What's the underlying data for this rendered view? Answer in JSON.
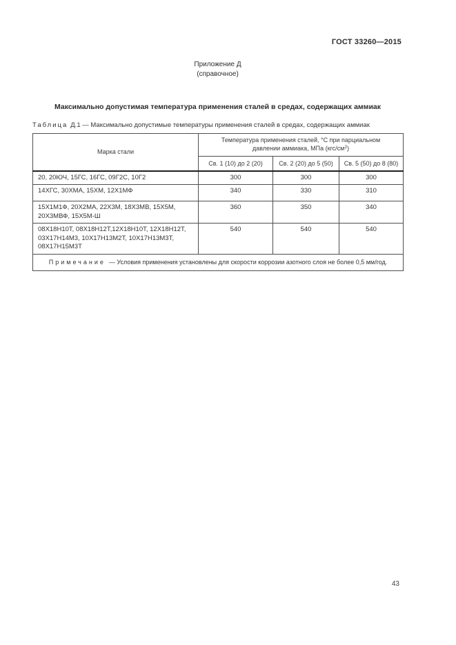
{
  "header": {
    "doc_number": "ГОСТ 33260—2015",
    "appendix_label": "Приложение Д",
    "appendix_type": "(справочное)",
    "title": "Максимально допустимая температура применения сталей в средах, содержащих аммиак"
  },
  "table": {
    "caption_label": "Таблица",
    "caption_text": "Д.1 — Максимально допустимые температуры применения сталей в средах, содержащих аммиак",
    "col_steel": "Марка стали",
    "temp_header_text": "Температура применения сталей, °С при парциальном давлении аммиака, МПа (кгс/см",
    "temp_header_sup": "2",
    "temp_header_close": ")",
    "subcols": [
      "Св. 1 (10) до 2 (20)",
      "Св. 2 (20) до 5 (50)",
      "Св. 5 (50) до 8 (80)"
    ],
    "rows": [
      {
        "steel": "20, 20ЮЧ, 15ГС, 16ГС, 09Г2С, 10Г2",
        "values": [
          "300",
          "300",
          "300"
        ]
      },
      {
        "steel": "14ХГС, 30ХМА, 15ХМ, 12Х1МФ",
        "values": [
          "340",
          "330",
          "310"
        ]
      },
      {
        "steel": "15Х1М1Ф, 20Х2МА, 22Х3М, 18Х3МВ, 15Х5М, 20Х3МВФ, 15Х5М-Ш",
        "values": [
          "360",
          "350",
          "340"
        ]
      },
      {
        "steel": "08Х18Н10Т, 08Х18Н12Т,12Х18Н10Т, 12Х18Н12Т, 03Х17Н14М3, 10Х17Н13М2Т, 10Х17Н13М3Т, 08Х17Н15М3Т",
        "values": [
          "540",
          "540",
          "540"
        ]
      }
    ],
    "note_label": "Примечание",
    "note_text": "— Условия применения установлены для скорости коррозии азотного слоя не более 0,5 мм/год."
  },
  "footer": {
    "page_number": "43"
  }
}
